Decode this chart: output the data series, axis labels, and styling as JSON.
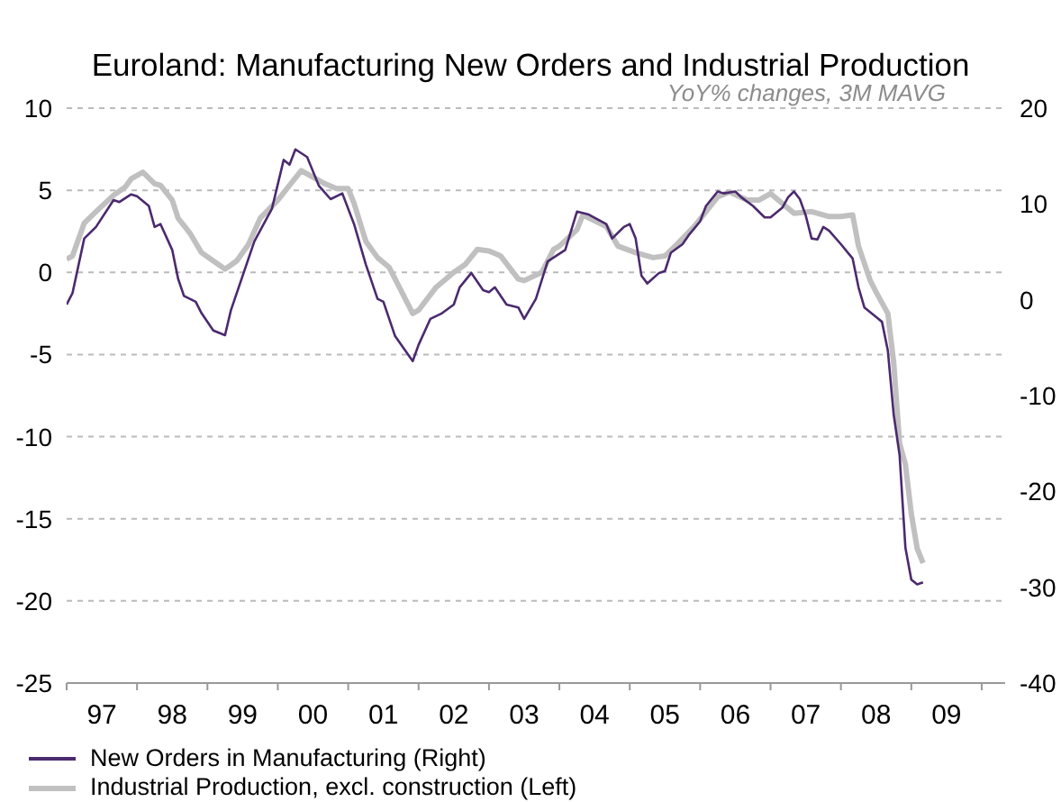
{
  "chart_data": {
    "type": "line",
    "title": "Euroland: Manufacturing New Orders and Industrial Production",
    "subtitle": "YoY% changes, 3M MAVG",
    "xlim": [
      "1997-01",
      "2010-05"
    ],
    "xticks": [
      {
        "value": "1997-01",
        "label": null
      },
      {
        "value": "1998-01",
        "label": null
      },
      {
        "value": "1999-01",
        "label": null
      },
      {
        "value": "2000-01",
        "label": null
      },
      {
        "value": "2001-01",
        "label": null
      },
      {
        "value": "2002-01",
        "label": null
      },
      {
        "value": "2003-01",
        "label": null
      },
      {
        "value": "2004-01",
        "label": null
      },
      {
        "value": "2005-01",
        "label": null
      },
      {
        "value": "2006-01",
        "label": null
      },
      {
        "value": "2007-01",
        "label": null
      },
      {
        "value": "2008-01",
        "label": null
      },
      {
        "value": "2009-01",
        "label": null
      },
      {
        "value": "2010-01",
        "label": null
      },
      {
        "value": "1997-07",
        "label": "97"
      },
      {
        "value": "1998-07",
        "label": "98"
      },
      {
        "value": "1999-07",
        "label": "99"
      },
      {
        "value": "2000-07",
        "label": "00"
      },
      {
        "value": "2001-07",
        "label": "01"
      },
      {
        "value": "2002-07",
        "label": "02"
      },
      {
        "value": "2003-07",
        "label": "03"
      },
      {
        "value": "2004-07",
        "label": "04"
      },
      {
        "value": "2005-07",
        "label": "05"
      },
      {
        "value": "2006-07",
        "label": "06"
      },
      {
        "value": "2007-07",
        "label": "07"
      },
      {
        "value": "2008-07",
        "label": "08"
      },
      {
        "value": "2009-07",
        "label": "09"
      }
    ],
    "ylim": [
      -25,
      10
    ],
    "yticks": [
      -25,
      -20,
      -15,
      -10,
      -5,
      0,
      5,
      10
    ],
    "y2lim": [
      -40,
      20
    ],
    "y2ticks": [
      -40,
      -30,
      -20,
      -10,
      0,
      10,
      20
    ],
    "grid": "y",
    "legend": "bottom left",
    "series": [
      {
        "name": "New Orders in Manufacturing (Right)",
        "color": "#4b2a6e",
        "axis": "y2",
        "x": [
          "1997-01",
          "1997-02",
          "1997-04",
          "1997-06",
          "1997-09",
          "1997-10",
          "1997-12",
          "1998-01",
          "1998-03",
          "1998-04",
          "1998-05",
          "1998-07",
          "1998-08",
          "1998-09",
          "1998-11",
          "1998-12",
          "1999-02",
          "1999-04",
          "1999-05",
          "1999-07",
          "1999-09",
          "1999-12",
          "2000-02",
          "2000-03",
          "2000-04",
          "2000-06",
          "2000-08",
          "2000-10",
          "2000-12",
          "2001-02",
          "2001-04",
          "2001-06",
          "2001-07",
          "2001-09",
          "2001-12",
          "2002-01",
          "2002-03",
          "2002-05",
          "2002-07",
          "2002-08",
          "2002-10",
          "2002-12",
          "2003-01",
          "2003-02",
          "2003-04",
          "2003-06",
          "2003-07",
          "2003-09",
          "2003-11",
          "2004-02",
          "2004-04",
          "2004-06",
          "2004-09",
          "2004-10",
          "2004-12",
          "2005-01",
          "2005-02",
          "2005-03",
          "2005-04",
          "2005-06",
          "2005-07",
          "2005-08",
          "2005-10",
          "2005-11",
          "2006-01",
          "2006-02",
          "2006-04",
          "2006-05",
          "2006-07",
          "2006-08",
          "2006-10",
          "2006-12",
          "2007-01",
          "2007-03",
          "2007-04",
          "2007-05",
          "2007-06",
          "2007-07",
          "2007-08",
          "2007-09",
          "2007-10",
          "2007-11",
          "2008-01",
          "2008-03",
          "2008-04",
          "2008-05",
          "2008-07",
          "2008-08",
          "2008-09",
          "2008-10",
          "2008-11",
          "2008-12",
          "2009-01",
          "2009-02",
          "2009-03"
        ],
        "values": [
          -0.5,
          0.7,
          6.4,
          7.6,
          10.4,
          10.2,
          11.0,
          10.8,
          9.8,
          7.6,
          7.9,
          5.2,
          2.2,
          0.4,
          -0.2,
          -1.4,
          -3.2,
          -3.7,
          -1.1,
          2.5,
          6.1,
          9.5,
          14.6,
          14.1,
          15.7,
          14.9,
          11.9,
          10.5,
          11.1,
          7.9,
          3.7,
          0.1,
          -0.2,
          -3.8,
          -6.4,
          -4.7,
          -2.0,
          -1.4,
          -0.5,
          1.3,
          2.8,
          1.0,
          0.8,
          1.3,
          -0.5,
          -0.8,
          -2.0,
          0.1,
          4.0,
          5.2,
          9.2,
          8.9,
          7.9,
          6.4,
          7.6,
          7.9,
          6.4,
          2.5,
          1.7,
          2.8,
          3.0,
          4.9,
          5.8,
          6.7,
          8.2,
          9.8,
          11.3,
          11.1,
          11.3,
          10.7,
          9.8,
          8.6,
          8.6,
          9.6,
          10.7,
          11.3,
          10.5,
          8.8,
          6.4,
          6.3,
          7.6,
          7.2,
          5.8,
          4.3,
          1.3,
          -0.8,
          -1.8,
          -2.3,
          -5.3,
          -12.0,
          -16.2,
          -25.9,
          -29.2,
          -29.7,
          -29.5
        ]
      },
      {
        "name": "Industrial Production, excl. construction (Left)",
        "color": "#c0c0c0",
        "x": [
          "1997-01",
          "1997-02",
          "1997-04",
          "1997-06",
          "1997-09",
          "1997-11",
          "1997-12",
          "1998-02",
          "1998-04",
          "1998-05",
          "1998-07",
          "1998-08",
          "1998-10",
          "1998-12",
          "1999-02",
          "1999-04",
          "1999-06",
          "1999-08",
          "1999-10",
          "2000-01",
          "2000-03",
          "2000-05",
          "2000-07",
          "2000-09",
          "2000-11",
          "2001-01",
          "2001-02",
          "2001-04",
          "2001-06",
          "2001-08",
          "2001-10",
          "2001-12",
          "2002-01",
          "2002-04",
          "2002-07",
          "2002-09",
          "2002-11",
          "2003-01",
          "2003-03",
          "2003-06",
          "2003-07",
          "2003-10",
          "2003-12",
          "2004-01",
          "2004-04",
          "2004-05",
          "2004-09",
          "2004-11",
          "2005-02",
          "2005-05",
          "2005-07",
          "2005-09",
          "2005-12",
          "2006-02",
          "2006-04",
          "2006-06",
          "2006-09",
          "2006-11",
          "2007-01",
          "2007-03",
          "2007-05",
          "2007-08",
          "2007-11",
          "2008-01",
          "2008-03",
          "2008-04",
          "2008-06",
          "2008-07",
          "2008-09",
          "2008-10",
          "2008-11",
          "2008-12",
          "2009-01",
          "2009-02",
          "2009-03"
        ],
        "values": [
          0.8,
          1.0,
          3.0,
          3.7,
          4.7,
          5.2,
          5.7,
          6.1,
          5.4,
          5.3,
          4.4,
          3.3,
          2.4,
          1.2,
          0.7,
          0.2,
          0.7,
          1.7,
          3.3,
          4.4,
          5.3,
          6.2,
          5.8,
          5.4,
          5.1,
          5.1,
          4.2,
          1.9,
          0.9,
          0.3,
          -1.1,
          -2.5,
          -2.3,
          -0.9,
          0.0,
          0.5,
          1.4,
          1.3,
          1.0,
          -0.4,
          -0.5,
          0.0,
          1.4,
          1.6,
          2.6,
          3.5,
          2.8,
          1.6,
          1.2,
          0.9,
          1.0,
          1.7,
          2.8,
          3.7,
          4.6,
          4.9,
          4.4,
          4.4,
          4.8,
          4.2,
          3.6,
          3.7,
          3.4,
          3.4,
          3.5,
          1.6,
          -0.5,
          -1.2,
          -2.5,
          -5.5,
          -10.4,
          -11.7,
          -14.7,
          -16.8,
          -17.7
        ]
      }
    ]
  }
}
